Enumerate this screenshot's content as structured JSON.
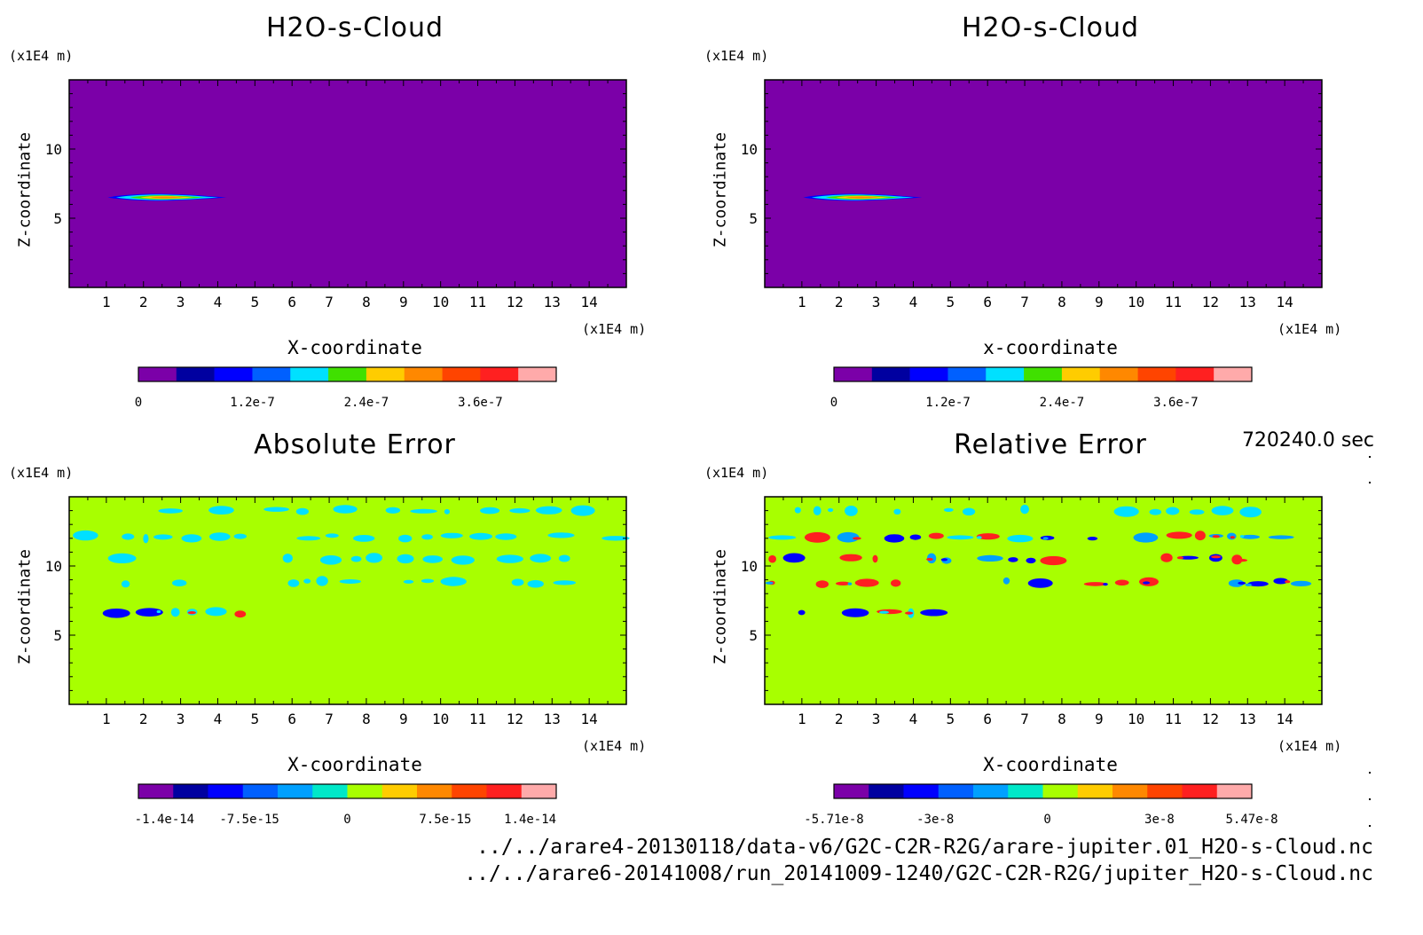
{
  "colors": {
    "purple": "#7b00a8",
    "darkblue": "#0000a0",
    "blue": "#0000ff",
    "midblue": "#0060ff",
    "skyblue": "#00a0ff",
    "cyan": "#00e0ff",
    "aqua": "#00e8c8",
    "green": "#40e000",
    "lime": "#a8ff00",
    "yellow": "#ffcc00",
    "orange": "#ff8800",
    "redorange": "#ff4400",
    "red": "#ff2020",
    "pink": "#ffaaaa"
  },
  "time_label": "720240.0 sec",
  "footer": {
    "line1": "../../arare4-20130118/data-v6/G2C-C2R-R2G/arare-jupiter.01_H2O-s-Cloud.nc",
    "line2": "../../arare6-20141008/run_20141009-1240/G2C-C2R-R2G/jupiter_H2O-s-Cloud.nc"
  },
  "chart_data": [
    {
      "type": "heatmap",
      "title": "H2O-s-Cloud",
      "xlabel": "X-coordinate",
      "ylabel": "Z-coordinate",
      "x_unit": "(x1E4 m)",
      "y_unit": "(x1E4 m)",
      "xlim": [
        0,
        15
      ],
      "ylim": [
        0,
        15
      ],
      "x_ticks": [
        1,
        2,
        3,
        4,
        5,
        6,
        7,
        8,
        9,
        10,
        11,
        12,
        13,
        14
      ],
      "y_ticks": [
        5,
        10
      ],
      "background_color": "purple",
      "colorbar": {
        "colors": [
          "purple",
          "darkblue",
          "blue",
          "midblue",
          "cyan",
          "green",
          "yellow",
          "orange",
          "redorange",
          "red",
          "pink"
        ],
        "tick_labels": [
          {
            "label": "0",
            "value": 0
          },
          {
            "label": "1.2e-7",
            "value": 1.2e-07
          },
          {
            "label": "2.4e-7",
            "value": 2.4e-07
          },
          {
            "label": "3.6e-7",
            "value": 3.6e-07
          }
        ],
        "min": 0,
        "max": 4.4e-07
      },
      "features": [
        {
          "x_start": 1.1,
          "x_end": 4.3,
          "z": 6.5,
          "z_halfwidth": 0.2,
          "peak_value": 3.6e-07,
          "description_colors": [
            "blue",
            "cyan",
            "green",
            "yellow",
            "orange"
          ]
        }
      ]
    },
    {
      "type": "heatmap",
      "title": "H2O-s-Cloud",
      "xlabel": "x-coordinate",
      "ylabel": "Z-coordinate",
      "x_unit": "(x1E4 m)",
      "y_unit": "(x1E4 m)",
      "xlim": [
        0,
        15
      ],
      "ylim": [
        0,
        15
      ],
      "x_ticks": [
        1,
        2,
        3,
        4,
        5,
        6,
        7,
        8,
        9,
        10,
        11,
        12,
        13,
        14
      ],
      "y_ticks": [
        5,
        10
      ],
      "background_color": "purple",
      "colorbar": {
        "colors": [
          "purple",
          "darkblue",
          "blue",
          "midblue",
          "cyan",
          "green",
          "yellow",
          "orange",
          "redorange",
          "red",
          "pink"
        ],
        "tick_labels": [
          {
            "label": "0",
            "value": 0
          },
          {
            "label": "1.2e-7",
            "value": 1.2e-07
          },
          {
            "label": "2.4e-7",
            "value": 2.4e-07
          },
          {
            "label": "3.6e-7",
            "value": 3.6e-07
          }
        ],
        "min": 0,
        "max": 4.4e-07
      },
      "features": [
        {
          "x_start": 1.1,
          "x_end": 4.3,
          "z": 6.5,
          "z_halfwidth": 0.2,
          "peak_value": 3.6e-07,
          "description_colors": [
            "blue",
            "cyan",
            "green",
            "yellow",
            "orange"
          ]
        }
      ]
    },
    {
      "type": "heatmap",
      "title": "Absolute Error",
      "xlabel": "X-coordinate",
      "ylabel": "Z-coordinate",
      "x_unit": "(x1E4 m)",
      "y_unit": "(x1E4 m)",
      "xlim": [
        0,
        15
      ],
      "ylim": [
        0,
        15
      ],
      "x_ticks": [
        1,
        2,
        3,
        4,
        5,
        6,
        7,
        8,
        9,
        10,
        11,
        12,
        13,
        14
      ],
      "y_ticks": [
        5,
        10
      ],
      "background_color": "lime",
      "colorbar": {
        "colors": [
          "purple",
          "darkblue",
          "blue",
          "midblue",
          "skyblue",
          "aqua",
          "lime",
          "yellow",
          "orange",
          "redorange",
          "red",
          "pink"
        ],
        "tick_labels": [
          {
            "label": "-1.4e-14",
            "value": -1.4e-14
          },
          {
            "label": "-7.5e-15",
            "value": -7.5e-15
          },
          {
            "label": "0",
            "value": 0
          },
          {
            "label": "7.5e-15",
            "value": 7.5e-15
          },
          {
            "label": "1.4e-14",
            "value": 1.4e-14
          }
        ],
        "min": -1.6e-14,
        "max": 1.6e-14
      },
      "bands": [
        {
          "z": 14.0,
          "x_start": 0.1,
          "x_end": 14.6,
          "density": 0.55,
          "colors": [
            "cyan"
          ]
        },
        {
          "z": 12.1,
          "x_start": 0.1,
          "x_end": 14.6,
          "density": 0.75,
          "colors": [
            "cyan"
          ]
        },
        {
          "z": 10.5,
          "x_start": 0.4,
          "x_end": 14.8,
          "density": 0.6,
          "colors": [
            "cyan"
          ]
        },
        {
          "z": 8.8,
          "x_start": 0.4,
          "x_end": 14.8,
          "density": 0.55,
          "colors": [
            "cyan"
          ]
        },
        {
          "z": 6.6,
          "x_start": 0.9,
          "x_end": 4.6,
          "density": 0.85,
          "colors": [
            "cyan",
            "blue",
            "red"
          ]
        }
      ]
    },
    {
      "type": "heatmap",
      "title": "Relative Error",
      "xlabel": "X-coordinate",
      "ylabel": "Z-coordinate",
      "x_unit": "(x1E4 m)",
      "y_unit": "(x1E4 m)",
      "xlim": [
        0,
        15
      ],
      "ylim": [
        0,
        15
      ],
      "x_ticks": [
        1,
        2,
        3,
        4,
        5,
        6,
        7,
        8,
        9,
        10,
        11,
        12,
        13,
        14
      ],
      "y_ticks": [
        5,
        10
      ],
      "background_color": "lime",
      "colorbar": {
        "colors": [
          "purple",
          "darkblue",
          "blue",
          "midblue",
          "skyblue",
          "aqua",
          "lime",
          "yellow",
          "orange",
          "redorange",
          "red",
          "pink"
        ],
        "tick_labels": [
          {
            "label": "-5.71e-8",
            "value": -5.71e-08
          },
          {
            "label": "-3e-8",
            "value": -3e-08
          },
          {
            "label": "0",
            "value": 0
          },
          {
            "label": "3e-8",
            "value": 3e-08
          },
          {
            "label": "5.47e-8",
            "value": 5.47e-08
          }
        ],
        "min": -5.71e-08,
        "max": 5.47e-08
      },
      "bands": [
        {
          "z": 14.0,
          "x_start": 0.1,
          "x_end": 14.6,
          "density": 0.55,
          "colors": [
            "cyan"
          ]
        },
        {
          "z": 12.1,
          "x_start": 0.1,
          "x_end": 14.6,
          "density": 0.8,
          "colors": [
            "blue",
            "red",
            "skyblue",
            "cyan"
          ]
        },
        {
          "z": 10.5,
          "x_start": 0.1,
          "x_end": 14.8,
          "density": 0.65,
          "colors": [
            "red",
            "blue",
            "skyblue"
          ]
        },
        {
          "z": 8.8,
          "x_start": 0.1,
          "x_end": 14.8,
          "density": 0.6,
          "colors": [
            "blue",
            "red",
            "skyblue"
          ]
        },
        {
          "z": 6.6,
          "x_start": 0.9,
          "x_end": 4.6,
          "density": 0.85,
          "colors": [
            "blue",
            "red",
            "cyan"
          ]
        }
      ]
    }
  ]
}
